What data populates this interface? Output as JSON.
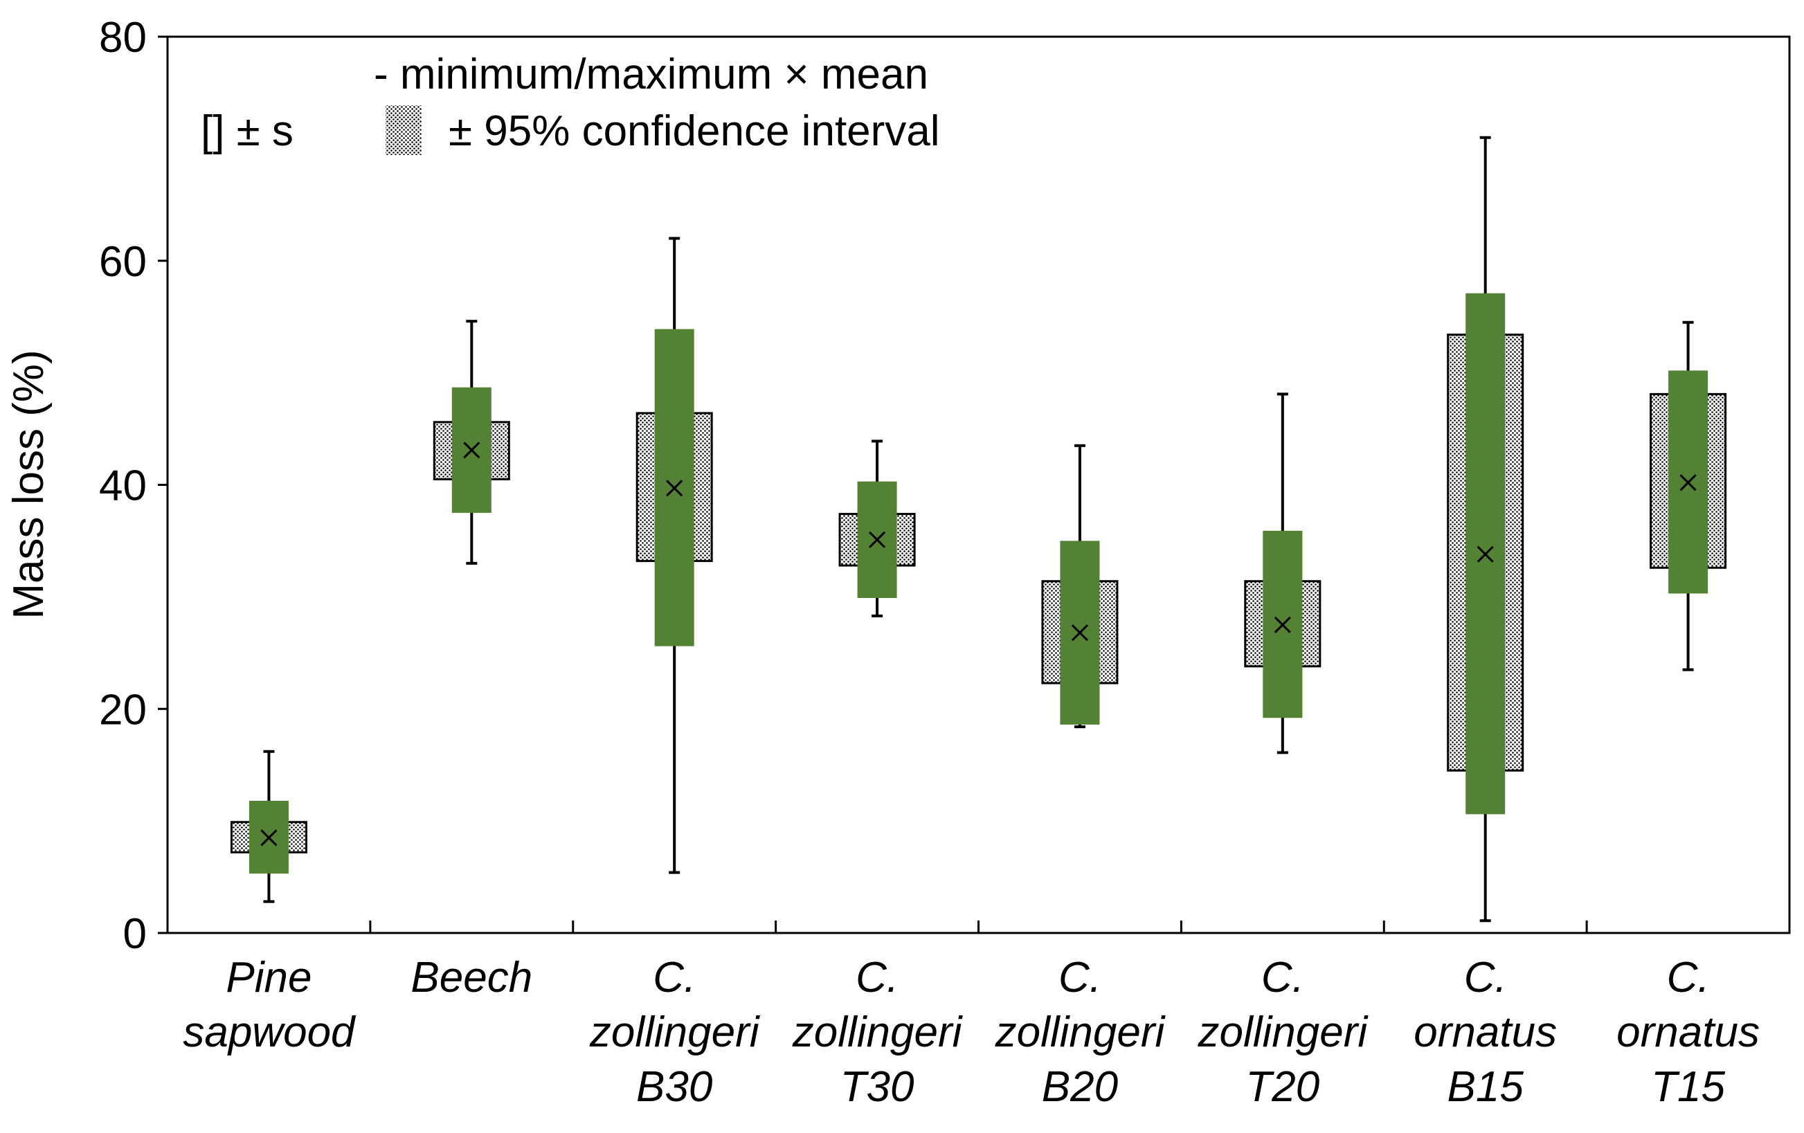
{
  "chart_data": {
    "type": "box",
    "title": "",
    "xlabel": "",
    "ylabel": "Mass loss (%)",
    "ylim": [
      0,
      80
    ],
    "yticks": [
      "0",
      "20",
      "40",
      "60",
      "80"
    ],
    "grid": false,
    "legend": {
      "placement": "top-left",
      "range_label": "- minimum/maximum",
      "mean_label": "× mean",
      "sd_label": "[] ± s",
      "ci_label": "± 95% confidence interval"
    },
    "categories": [
      [
        "Pine",
        "sapwood"
      ],
      [
        "Beech"
      ],
      [
        "C.",
        "zollingeri",
        "B30"
      ],
      [
        "C.",
        "zollingeri",
        "T30"
      ],
      [
        "C.",
        "zollingeri",
        "B20"
      ],
      [
        "C.",
        "zollingeri",
        "T20"
      ],
      [
        "C.",
        "ornatus",
        "B15"
      ],
      [
        "C.",
        "ornatus",
        "T15"
      ]
    ],
    "series": [
      {
        "name": "Pine sapwood",
        "min": 2.8,
        "max": 16.2,
        "mean": 8.5,
        "sd": [
          5.3,
          11.8
        ],
        "ci95": [
          7.2,
          9.9
        ]
      },
      {
        "name": "Beech",
        "min": 33.0,
        "max": 54.6,
        "mean": 43.1,
        "sd": [
          37.5,
          48.7
        ],
        "ci95": [
          40.5,
          45.6
        ]
      },
      {
        "name": "C. zollingeri B30",
        "min": 5.4,
        "max": 62.0,
        "mean": 39.7,
        "sd": [
          25.6,
          53.9
        ],
        "ci95": [
          33.2,
          46.4
        ]
      },
      {
        "name": "C. zollingeri T30",
        "min": 28.3,
        "max": 43.9,
        "mean": 35.1,
        "sd": [
          29.9,
          40.3
        ],
        "ci95": [
          32.8,
          37.4
        ]
      },
      {
        "name": "C. zollingeri B20",
        "min": 18.4,
        "max": 43.5,
        "mean": 26.8,
        "sd": [
          18.6,
          35.0
        ],
        "ci95": [
          22.3,
          31.4
        ]
      },
      {
        "name": "C. zollingeri T20",
        "min": 16.1,
        "max": 48.1,
        "mean": 27.5,
        "sd": [
          19.2,
          35.9
        ],
        "ci95": [
          23.8,
          31.4
        ]
      },
      {
        "name": "C. ornatus B15",
        "min": 1.1,
        "max": 71.0,
        "mean": 33.8,
        "sd": [
          10.6,
          57.1
        ],
        "ci95": [
          14.5,
          53.4
        ]
      },
      {
        "name": "C. ornatus T15",
        "min": 23.5,
        "max": 54.5,
        "mean": 40.2,
        "sd": [
          30.3,
          50.2
        ],
        "ci95": [
          32.6,
          48.1
        ]
      }
    ],
    "colors": {
      "sd_fill": "#548235",
      "axis": "#000000",
      "ci_dot": "#000000"
    }
  }
}
